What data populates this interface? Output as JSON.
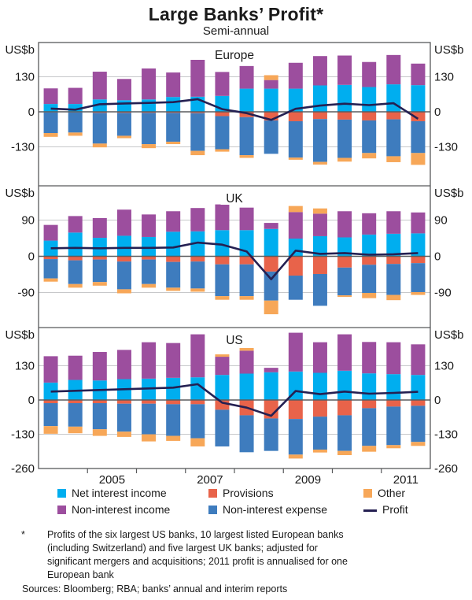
{
  "chart_data": {
    "type": "bar",
    "subtype": "stacked-bar-with-line",
    "title": "Large Banks’ Profit*",
    "subtitle": "Semi-annual",
    "unit": "US$b",
    "x_axis_labels": [
      "2005",
      "2007",
      "2009",
      "2011"
    ],
    "periods": [
      "2004 H1",
      "2004 H2",
      "2005 H1",
      "2005 H2",
      "2006 H1",
      "2006 H2",
      "2007 H1",
      "2007 H2",
      "2008 H1",
      "2008 H2",
      "2009 H1",
      "2009 H2",
      "2010 H1",
      "2010 H2",
      "2011 H1",
      "2011 H2"
    ],
    "colors": {
      "net_interest_income": "#00AEEF",
      "non_interest_income": "#9C4E9E",
      "provisions": "#E8634A",
      "non_interest_expense": "#3E7CBE",
      "other": "#F7A758",
      "profit": "#242052",
      "gridline": "#C7C8CA",
      "zero_line": "#5A5B5E",
      "frame": "#58595B"
    },
    "panels": [
      {
        "region": "Europe",
        "ylim": [
          -260,
          260
        ],
        "axis_ticks": [
          130,
          0,
          -130
        ],
        "net_interest_income": [
          29,
          29,
          46,
          43,
          46,
          55,
          56,
          59,
          86,
          86,
          86,
          98,
          100,
          92,
          102,
          99
        ],
        "non_interest_income": [
          58,
          60,
          103,
          79,
          115,
          91,
          137,
          89,
          84,
          32,
          96,
          109,
          109,
          93,
          109,
          80
        ],
        "provisions": [
          -2,
          -2,
          -4,
          -4,
          -4,
          -4,
          -5,
          -16,
          -20,
          -32,
          -35,
          -27,
          -29,
          -32,
          -28,
          -35
        ],
        "non_interest_expense": [
          -77,
          -75,
          -114,
          -85,
          -116,
          -107,
          -140,
          -123,
          -141,
          -124,
          -135,
          -159,
          -142,
          -121,
          -137,
          -118
        ],
        "other": [
          -14,
          -12,
          -14,
          -9,
          -15,
          -9,
          -16,
          -9,
          -10,
          18,
          -8,
          -10,
          -14,
          -20,
          -22,
          -44
        ],
        "profit": [
          12,
          8,
          28,
          31,
          33,
          36,
          47,
          10,
          -5,
          -30,
          11,
          23,
          30,
          25,
          32,
          -26
        ]
      },
      {
        "region": "UK",
        "ylim": [
          -180,
          180
        ],
        "axis_ticks": [
          90,
          0,
          -90
        ],
        "net_interest_income": [
          39,
          59,
          46,
          51,
          48,
          61,
          62,
          65,
          65,
          68,
          44,
          50,
          47,
          54,
          56,
          57
        ],
        "non_interest_income": [
          39,
          41,
          49,
          65,
          56,
          51,
          58,
          64,
          56,
          15,
          66,
          56,
          65,
          53,
          56,
          52
        ],
        "provisions": [
          -7,
          -10,
          -8,
          -13,
          -8,
          -14,
          -13,
          -20,
          -20,
          -38,
          -48,
          -44,
          -28,
          -21,
          -19,
          -17
        ],
        "non_interest_expense": [
          -48,
          -59,
          -56,
          -69,
          -61,
          -64,
          -67,
          -79,
          -79,
          -72,
          -60,
          -79,
          -69,
          -70,
          -77,
          -72
        ],
        "other": [
          -8,
          -9,
          -9,
          -10,
          -9,
          -8,
          -8,
          -9,
          -9,
          -34,
          15,
          13,
          -4,
          -13,
          -13,
          -7
        ],
        "profit": [
          20,
          21,
          20,
          21,
          21,
          22,
          34,
          29,
          12,
          -57,
          14,
          6,
          8,
          4,
          5,
          8
        ]
      },
      {
        "region": "US",
        "ylim": [
          -260,
          260
        ],
        "axis_ticks": [
          130,
          0,
          -130,
          -260
        ],
        "net_interest_income": [
          66,
          76,
          74,
          79,
          81,
          84,
          86,
          95,
          100,
          105,
          108,
          103,
          111,
          101,
          98,
          95
        ],
        "non_interest_income": [
          100,
          92,
          108,
          111,
          138,
          132,
          163,
          69,
          87,
          17,
          147,
          116,
          138,
          119,
          121,
          116
        ],
        "provisions": [
          -12,
          -12,
          -12,
          -14,
          -14,
          -16,
          -16,
          -37,
          -58,
          -70,
          -72,
          -63,
          -58,
          -31,
          -25,
          -22
        ],
        "non_interest_expense": [
          -87,
          -89,
          -99,
          -106,
          -116,
          -120,
          -129,
          -139,
          -140,
          -123,
          -135,
          -125,
          -135,
          -143,
          -146,
          -137
        ],
        "other": [
          -29,
          -25,
          -25,
          -20,
          -27,
          -19,
          -31,
          9,
          10,
          0,
          -15,
          -11,
          -16,
          -22,
          -12,
          -15
        ],
        "profit": [
          32,
          35,
          38,
          41,
          44,
          47,
          60,
          -10,
          -29,
          -60,
          34,
          22,
          32,
          24,
          27,
          31
        ]
      }
    ],
    "legend": [
      {
        "key": "net_interest_income",
        "label": "Net interest income"
      },
      {
        "key": "provisions",
        "label": "Provisions"
      },
      {
        "key": "other",
        "label": "Other"
      },
      {
        "key": "non_interest_income",
        "label": "Non-interest income"
      },
      {
        "key": "non_interest_expense",
        "label": "Non-interest expense"
      },
      {
        "key": "profit",
        "label": "Profit"
      }
    ],
    "legend_position": "bottom",
    "grid": true
  },
  "footnote": {
    "marker": "*",
    "lines": [
      "Profits of the six largest US banks, 10 largest listed European banks",
      "(including Switzerland) and five largest UK banks; adjusted for",
      "significant mergers and acquisitions; 2011 profit is annualised for one",
      "European bank"
    ],
    "sources": "Sources: Bloomberg; RBA; banks’ annual and interim reports"
  }
}
